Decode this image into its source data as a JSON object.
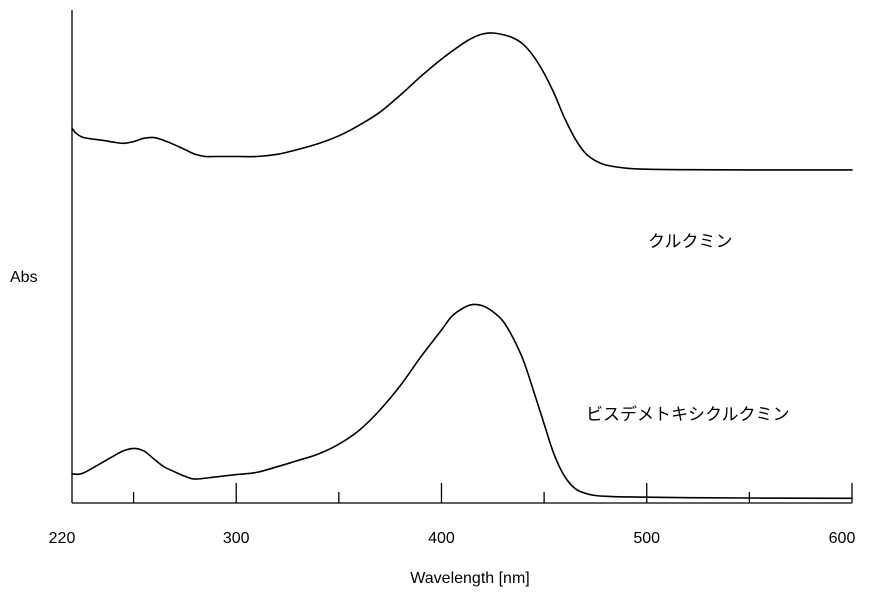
{
  "chart_data": {
    "type": "line",
    "title": "",
    "xlabel": "Wavelength [nm]",
    "ylabel": "Abs",
    "xlim": [
      220,
      600
    ],
    "ylim": [
      0,
      1
    ],
    "xticks_major": [
      220,
      300,
      400,
      500,
      600
    ],
    "xticks_minor": [
      250,
      350,
      450,
      550
    ],
    "grid": false,
    "legend": "none",
    "series": [
      {
        "name": "クルクミン",
        "x": [
          220,
          222,
          225,
          230,
          235,
          240,
          245,
          250,
          255,
          260,
          265,
          270,
          275,
          280,
          285,
          290,
          300,
          310,
          320,
          330,
          340,
          350,
          360,
          370,
          380,
          390,
          400,
          410,
          415,
          420,
          425,
          430,
          435,
          440,
          445,
          450,
          455,
          460,
          465,
          470,
          475,
          480,
          490,
          500,
          520,
          550,
          600
        ],
        "y": [
          0.618,
          0.597,
          0.582,
          0.574,
          0.569,
          0.562,
          0.557,
          0.564,
          0.577,
          0.58,
          0.568,
          0.551,
          0.532,
          0.513,
          0.504,
          0.504,
          0.504,
          0.504,
          0.513,
          0.532,
          0.556,
          0.587,
          0.63,
          0.682,
          0.751,
          0.826,
          0.895,
          0.955,
          0.98,
          0.996,
          1.0,
          0.993,
          0.98,
          0.953,
          0.905,
          0.838,
          0.755,
          0.658,
          0.577,
          0.518,
          0.487,
          0.47,
          0.457,
          0.453,
          0.451,
          0.45,
          0.45
        ]
      },
      {
        "name": "ビスデメトキシクルクミン",
        "x": [
          220,
          223,
          226,
          230,
          235,
          240,
          245,
          250,
          255,
          260,
          265,
          270,
          275,
          280,
          290,
          300,
          310,
          320,
          330,
          340,
          350,
          360,
          370,
          380,
          390,
          400,
          405,
          410,
          415,
          420,
          425,
          430,
          435,
          440,
          445,
          450,
          455,
          460,
          465,
          470,
          475,
          480,
          490,
          500,
          520,
          550,
          600
        ],
        "y": [
          0.093,
          0.091,
          0.097,
          0.113,
          0.134,
          0.155,
          0.174,
          0.183,
          0.174,
          0.145,
          0.117,
          0.1,
          0.084,
          0.074,
          0.082,
          0.09,
          0.098,
          0.118,
          0.14,
          0.163,
          0.198,
          0.248,
          0.319,
          0.406,
          0.508,
          0.603,
          0.651,
          0.678,
          0.693,
          0.689,
          0.668,
          0.634,
          0.573,
          0.493,
          0.384,
          0.27,
          0.159,
          0.084,
          0.041,
          0.024,
          0.016,
          0.013,
          0.011,
          0.01,
          0.008,
          0.007,
          0.006
        ]
      }
    ]
  },
  "colors": {
    "line": "#000000",
    "axis": "#000000",
    "background": "#ffffff"
  }
}
